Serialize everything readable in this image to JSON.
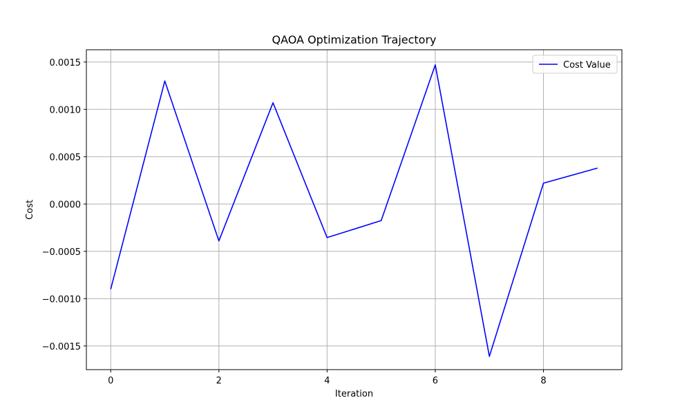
{
  "chart_data": {
    "type": "line",
    "title": "QAOA Optimization Trajectory",
    "xlabel": "Iteration",
    "ylabel": "Cost",
    "x": [
      0,
      1,
      2,
      3,
      4,
      5,
      6,
      7,
      8,
      9
    ],
    "series": [
      {
        "name": "Cost Value",
        "color": "#0000ff",
        "values": [
          -0.0009,
          0.0013,
          -0.00039,
          0.00107,
          -0.000355,
          -0.000175,
          0.00147,
          -0.00161,
          0.00022,
          0.00038
        ]
      }
    ],
    "xlim": [
      -0.45,
      9.45
    ],
    "ylim": [
      -0.00175,
      0.00163
    ],
    "xticks": [
      0,
      2,
      4,
      6,
      8
    ],
    "xtick_labels": [
      "0",
      "2",
      "4",
      "6",
      "8"
    ],
    "yticks": [
      -0.0015,
      -0.001,
      -0.0005,
      0.0,
      0.0005,
      0.001,
      0.0015
    ],
    "ytick_labels": [
      "−0.0015",
      "−0.0010",
      "−0.0005",
      "0.0000",
      "0.0005",
      "0.0010",
      "0.0015"
    ],
    "grid": true,
    "legend_position": "top-right"
  }
}
